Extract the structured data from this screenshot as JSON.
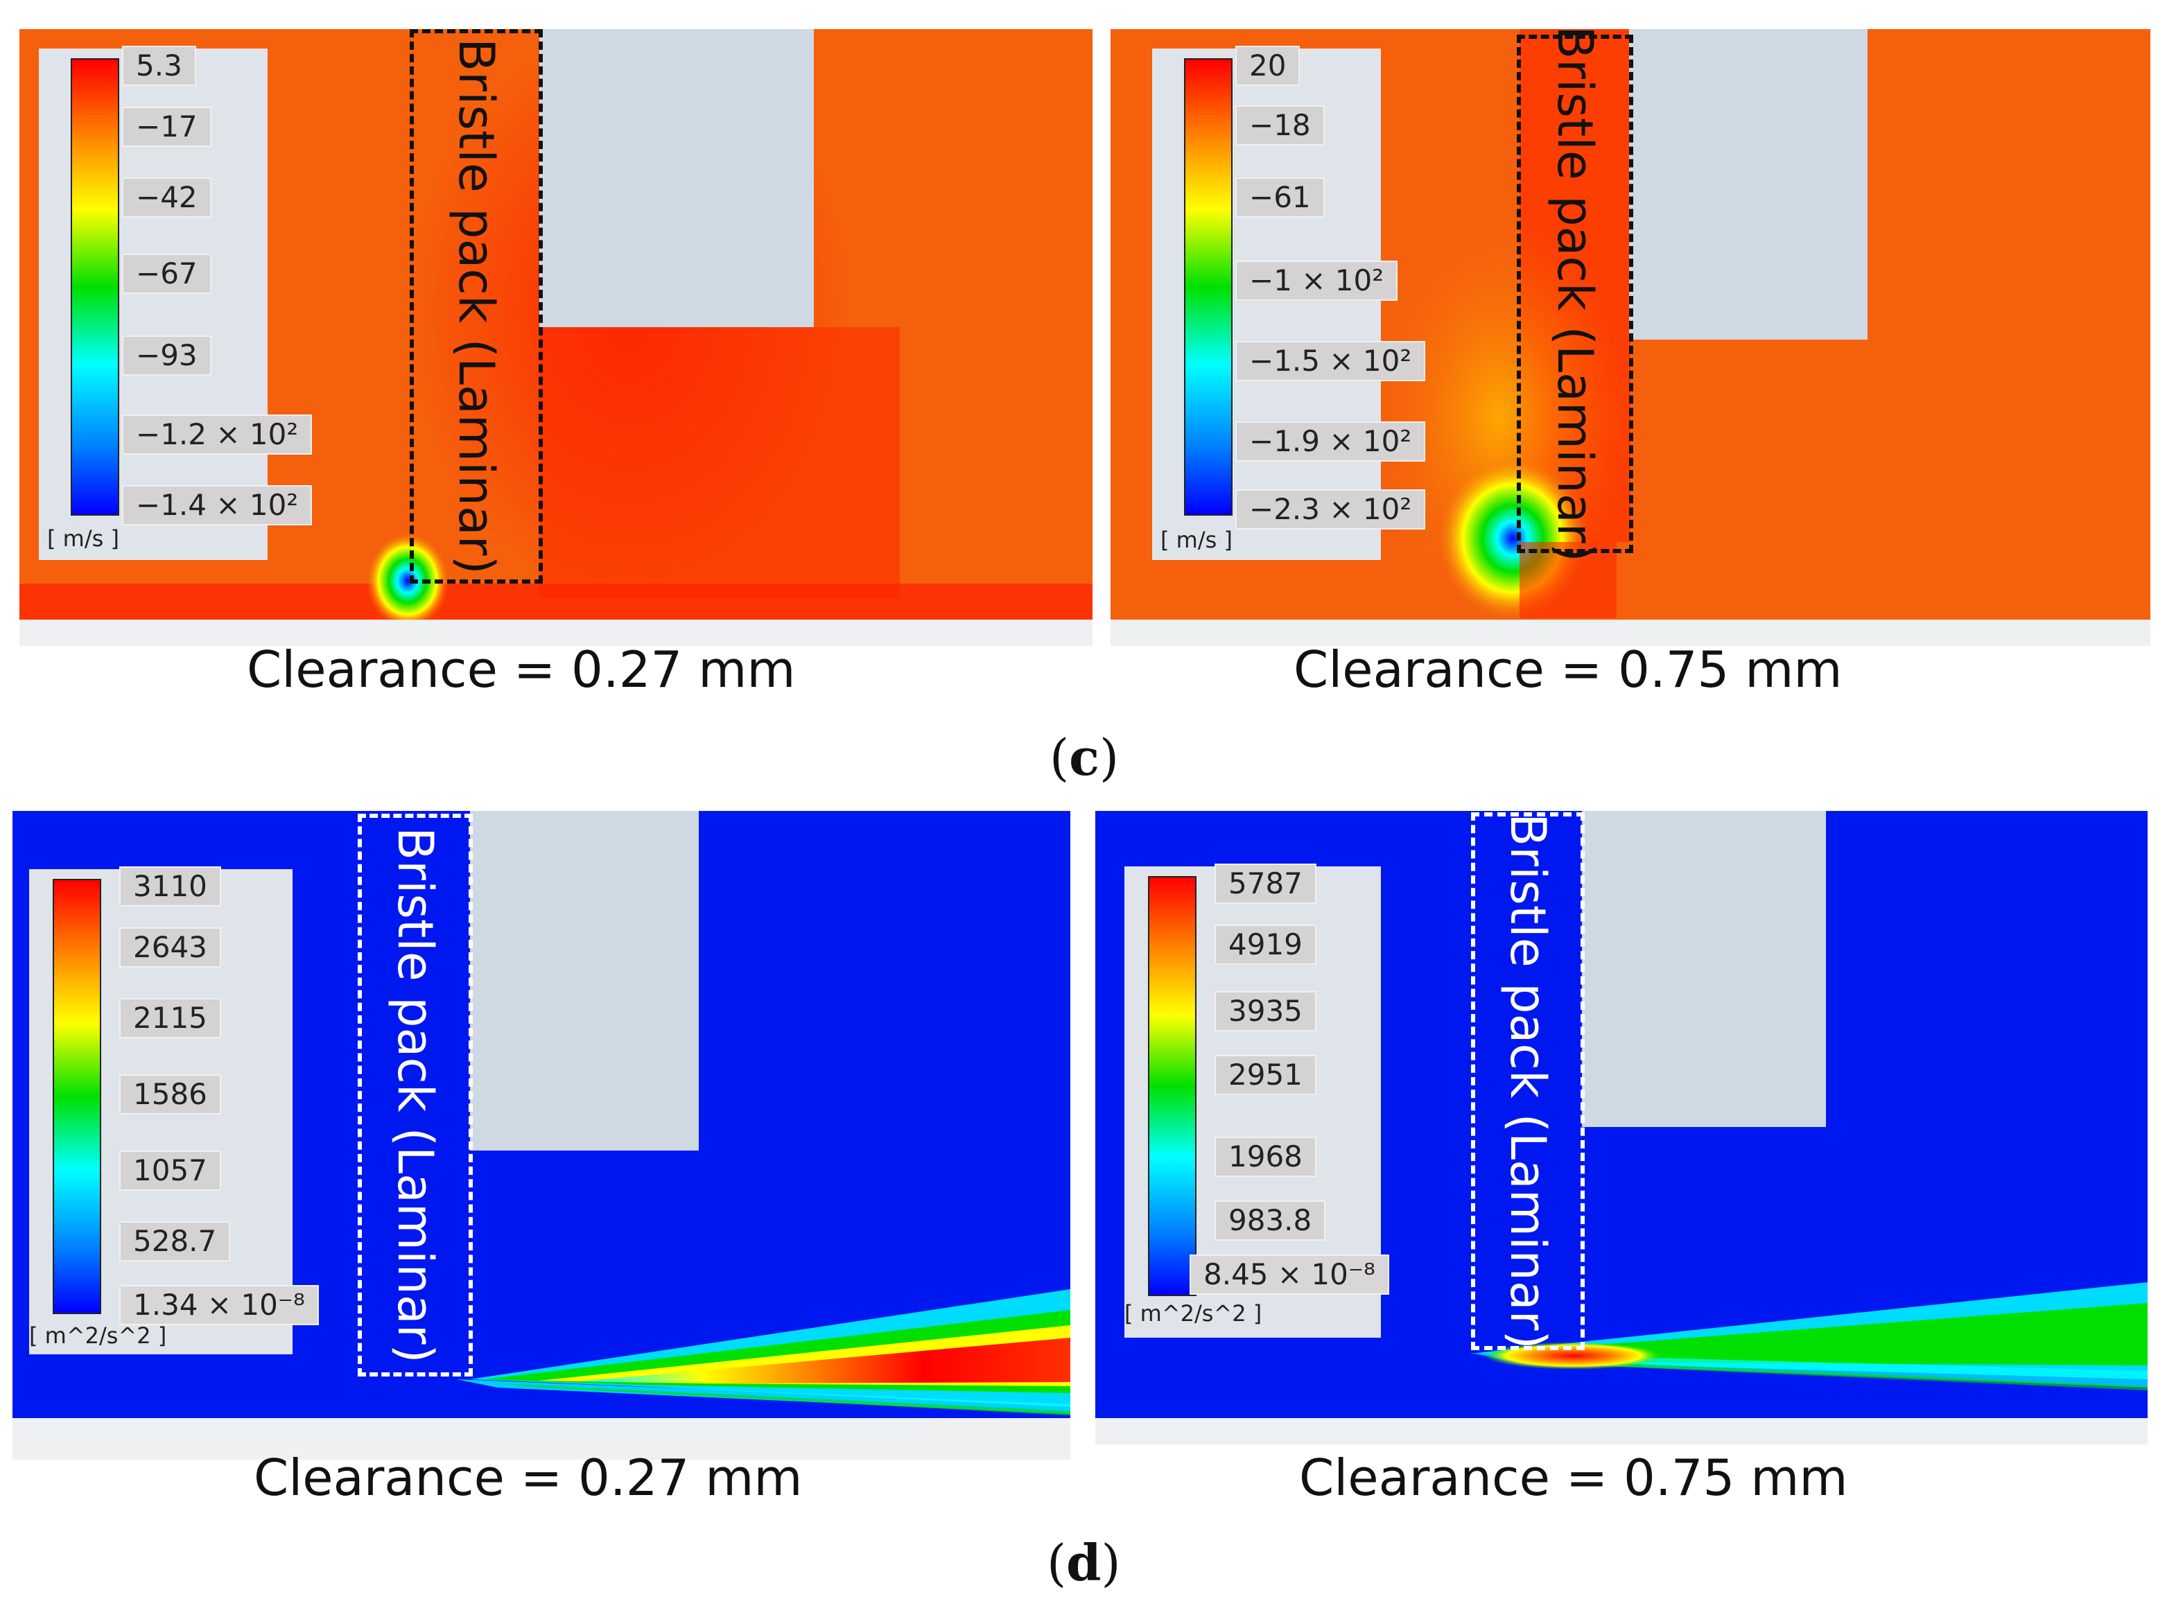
{
  "panel_c": {
    "label": "c",
    "plots": [
      {
        "caption": "Clearance = 0.27 mm",
        "bristle_label": "Bristle pack (Laminar)",
        "unit": "[ m/s ]",
        "ticks": [
          "5.3",
          "−17",
          "−42",
          "−67",
          "−93",
          "−1.2 × 10²",
          "−1.4 × 10²"
        ]
      },
      {
        "caption": "Clearance = 0.75 mm",
        "bristle_label": "Bristle pack (Laminar)",
        "unit": "[ m/s ]",
        "ticks": [
          "20",
          "−18",
          "−61",
          "−1 × 10²",
          "−1.5 × 10²",
          "−1.9 × 10²",
          "−2.3 × 10²"
        ]
      }
    ]
  },
  "panel_d": {
    "label": "d",
    "plots": [
      {
        "caption": "Clearance = 0.27 mm",
        "bristle_label": "Bristle pack (Laminar)",
        "unit": "[ m^2/s^2 ]",
        "ticks": [
          "3110",
          "2643",
          "2115",
          "1586",
          "1057",
          "528.7",
          "1.34 × 10⁻⁸"
        ]
      },
      {
        "caption": "Clearance = 0.75 mm",
        "bristle_label": "Bristle pack (Laminar)",
        "unit": "[ m^2/s^2 ]",
        "ticks": [
          "5787",
          "4919",
          "3935",
          "2951",
          "1968",
          "983.8",
          "8.45 × 10⁻⁸"
        ]
      }
    ]
  },
  "chart_data": [
    {
      "type": "heatmap",
      "title": "Clearance = 0.27 mm",
      "quantity_unit": "[ m/s ]",
      "colorbar_ticks": [
        "5.3",
        "−17",
        "−42",
        "−67",
        "−93",
        "−1.2 × 10²",
        "−1.4 × 10²"
      ],
      "colorbar_range": [
        -140,
        5.3
      ],
      "annotation": "Bristle pack (Laminar)",
      "colormap": "rainbow"
    },
    {
      "type": "heatmap",
      "title": "Clearance = 0.75 mm",
      "quantity_unit": "[ m/s ]",
      "colorbar_ticks": [
        "20",
        "−18",
        "−61",
        "−1 × 10²",
        "−1.5 × 10²",
        "−1.9 × 10²",
        "−2.3 × 10²"
      ],
      "colorbar_range": [
        -230,
        20
      ],
      "annotation": "Bristle pack (Laminar)",
      "colormap": "rainbow"
    },
    {
      "type": "heatmap",
      "title": "Clearance = 0.27 mm",
      "quantity_unit": "[ m^2/s^2 ]",
      "colorbar_ticks": [
        "3110",
        "2643",
        "2115",
        "1586",
        "1057",
        "528.7",
        "1.34 × 10⁻⁸"
      ],
      "colorbar_range": [
        1.34e-08,
        3110
      ],
      "annotation": "Bristle pack (Laminar)",
      "colormap": "rainbow"
    },
    {
      "type": "heatmap",
      "title": "Clearance = 0.75 mm",
      "quantity_unit": "[ m^2/s^2 ]",
      "colorbar_ticks": [
        "5787",
        "4919",
        "3935",
        "2951",
        "1968",
        "983.8",
        "8.45 × 10⁻⁸"
      ],
      "colorbar_range": [
        8.45e-08,
        5787
      ],
      "annotation": "Bristle pack (Laminar)",
      "colormap": "rainbow"
    }
  ],
  "colors": {
    "velocity_background": "#f5600c",
    "tke_background": "#0018f0",
    "geometry_gray": "#cfd9e3",
    "legend_gray": "#dfe4ea"
  }
}
